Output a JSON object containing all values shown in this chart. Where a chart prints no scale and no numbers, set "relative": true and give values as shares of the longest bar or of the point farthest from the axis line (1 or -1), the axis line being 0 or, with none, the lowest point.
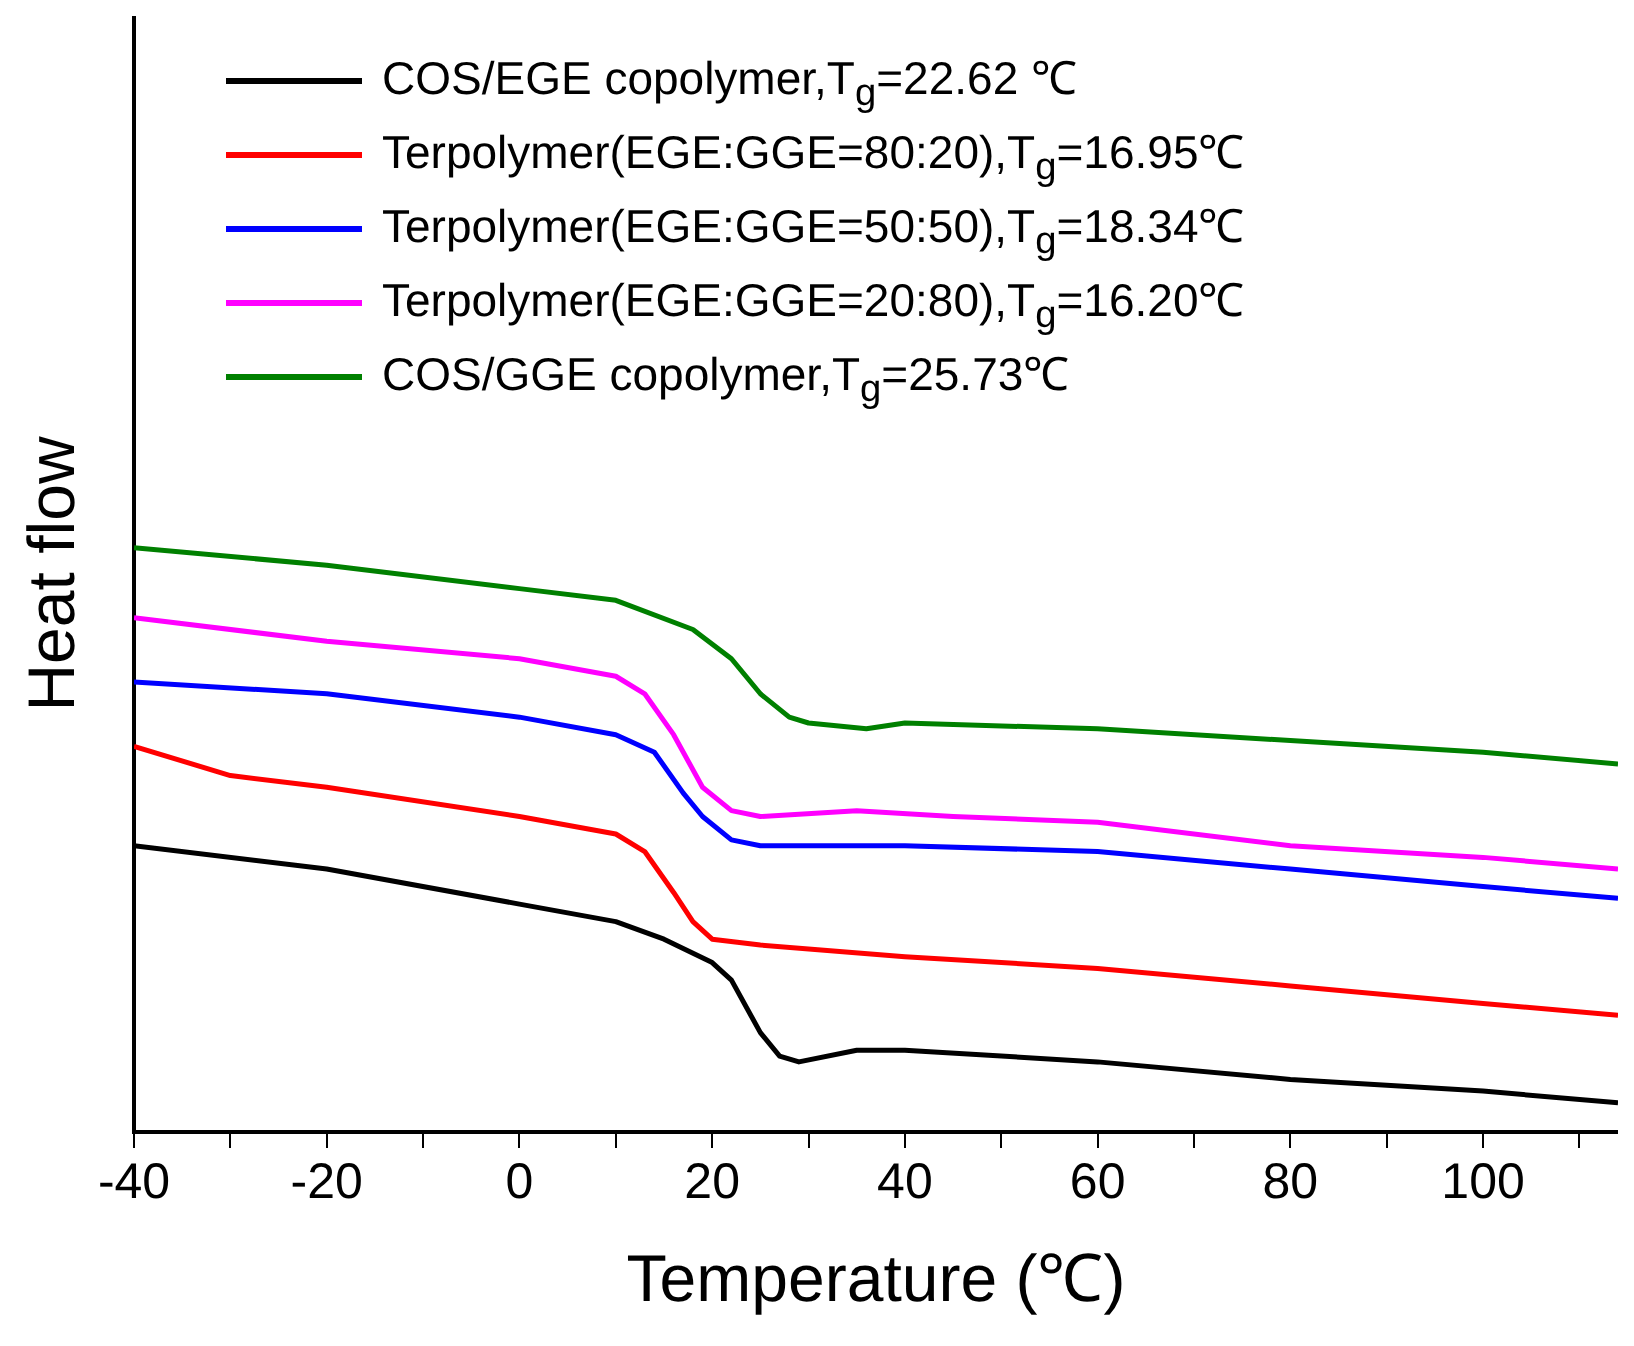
{
  "chart_data": {
    "type": "line",
    "relative": true,
    "xlabel": "Temperature (℃)",
    "ylabel": "Heat flow",
    "xlim": [
      -40,
      114
    ],
    "xticks": [
      -40,
      {
        "value": -30,
        "label": null
      },
      -20,
      {
        "value": -10,
        "label": null
      },
      0,
      {
        "value": 10,
        "label": null
      },
      20,
      {
        "value": 30,
        "label": null
      },
      40,
      {
        "value": 50,
        "label": null
      },
      60,
      {
        "value": 70,
        "label": null
      },
      80,
      {
        "value": 90,
        "label": null
      },
      100,
      {
        "value": 110,
        "label": null
      }
    ],
    "grid": false,
    "legend": "top left",
    "marker": "none",
    "line_style": "solid",
    "series": [
      {
        "name": "COS/EGE copolymer,T$_{g}$=22.62 ℃",
        "color": "#000000",
        "x": [
          -40,
          -20,
          0,
          10,
          15,
          20,
          22,
          25,
          27,
          29,
          35,
          40,
          60,
          80,
          100,
          114
        ],
        "values": [
          0.49,
          0.45,
          0.39,
          0.36,
          0.33,
          0.29,
          0.26,
          0.17,
          0.13,
          0.12,
          0.14,
          0.14,
          0.12,
          0.09,
          0.07,
          0.05
        ]
      },
      {
        "name": "Terpolymer(EGE:GGE=80:20),T$_{g}$=16.95℃",
        "color": "#ff0000",
        "x": [
          -40,
          -30,
          -20,
          0,
          10,
          13,
          16,
          18,
          20,
          25,
          40,
          60,
          80,
          100,
          114
        ],
        "values": [
          0.66,
          0.61,
          0.59,
          0.54,
          0.51,
          0.48,
          0.41,
          0.36,
          0.33,
          0.32,
          0.3,
          0.28,
          0.25,
          0.22,
          0.2
        ]
      },
      {
        "name": "Terpolymer(EGE:GGE=50:50),T$_{g}$=18.34℃",
        "color": "#0000ff",
        "x": [
          -40,
          -20,
          0,
          10,
          14,
          17,
          19,
          22,
          25,
          40,
          60,
          80,
          100,
          114
        ],
        "values": [
          0.77,
          0.75,
          0.71,
          0.68,
          0.65,
          0.58,
          0.54,
          0.5,
          0.49,
          0.49,
          0.48,
          0.45,
          0.42,
          0.4
        ]
      },
      {
        "name": "Terpolymer(EGE:GGE=20:80),T$_{g}$=16.20℃",
        "color": "#ff00ff",
        "x": [
          -40,
          -20,
          0,
          10,
          13,
          16,
          19,
          22,
          25,
          35,
          45,
          60,
          80,
          100,
          114
        ],
        "values": [
          0.88,
          0.84,
          0.81,
          0.78,
          0.75,
          0.68,
          0.59,
          0.55,
          0.54,
          0.55,
          0.54,
          0.53,
          0.49,
          0.47,
          0.45
        ]
      },
      {
        "name": "COS/GGE copolymer,T$_{g}$=25.73℃",
        "color": "#008000",
        "x": [
          -40,
          -20,
          0,
          10,
          18,
          22,
          25,
          28,
          30,
          36,
          40,
          60,
          80,
          100,
          114
        ],
        "values": [
          1,
          0.97,
          0.93,
          0.91,
          0.86,
          0.81,
          0.75,
          0.71,
          0.7,
          0.69,
          0.7,
          0.69,
          0.67,
          0.65,
          0.63
        ]
      }
    ]
  }
}
